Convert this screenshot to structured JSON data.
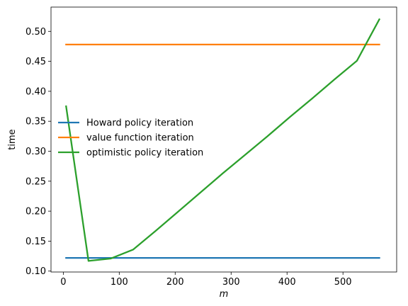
{
  "chart_data": {
    "type": "line",
    "title": "",
    "xlabel": "m",
    "ylabel": "time",
    "xlim": [
      -22,
      596
    ],
    "ylim": [
      0.0985,
      0.5405
    ],
    "xticks": [
      0,
      100,
      200,
      300,
      400,
      500
    ],
    "yticks": [
      0.1,
      0.15,
      0.2,
      0.25,
      0.3,
      0.35,
      0.4,
      0.45,
      0.5
    ],
    "ytick_labels": [
      "0.10",
      "0.15",
      "0.20",
      "0.25",
      "0.30",
      "0.35",
      "0.40",
      "0.45",
      "0.50"
    ],
    "xtick_labels": [
      "0",
      "100",
      "200",
      "300",
      "400",
      "500"
    ],
    "grid": false,
    "legend_position": "center-left",
    "series": [
      {
        "name": "Howard policy iteration",
        "color": "#1f77b4",
        "x": [
          5,
          565
        ],
        "y": [
          0.122,
          0.122
        ]
      },
      {
        "name": "value function iteration",
        "color": "#ff7f0e",
        "x": [
          5,
          565
        ],
        "y": [
          0.478,
          0.478
        ]
      },
      {
        "name": "optimistic policy iteration",
        "color": "#2ca02c",
        "x": [
          5,
          45,
          85,
          125,
          165,
          205,
          245,
          285,
          325,
          365,
          405,
          445,
          485,
          525,
          565
        ],
        "y": [
          0.375,
          0.117,
          0.121,
          0.136,
          0.167,
          0.199,
          0.231,
          0.263,
          0.294,
          0.325,
          0.357,
          0.388,
          0.42,
          0.451,
          0.52
        ]
      }
    ]
  }
}
